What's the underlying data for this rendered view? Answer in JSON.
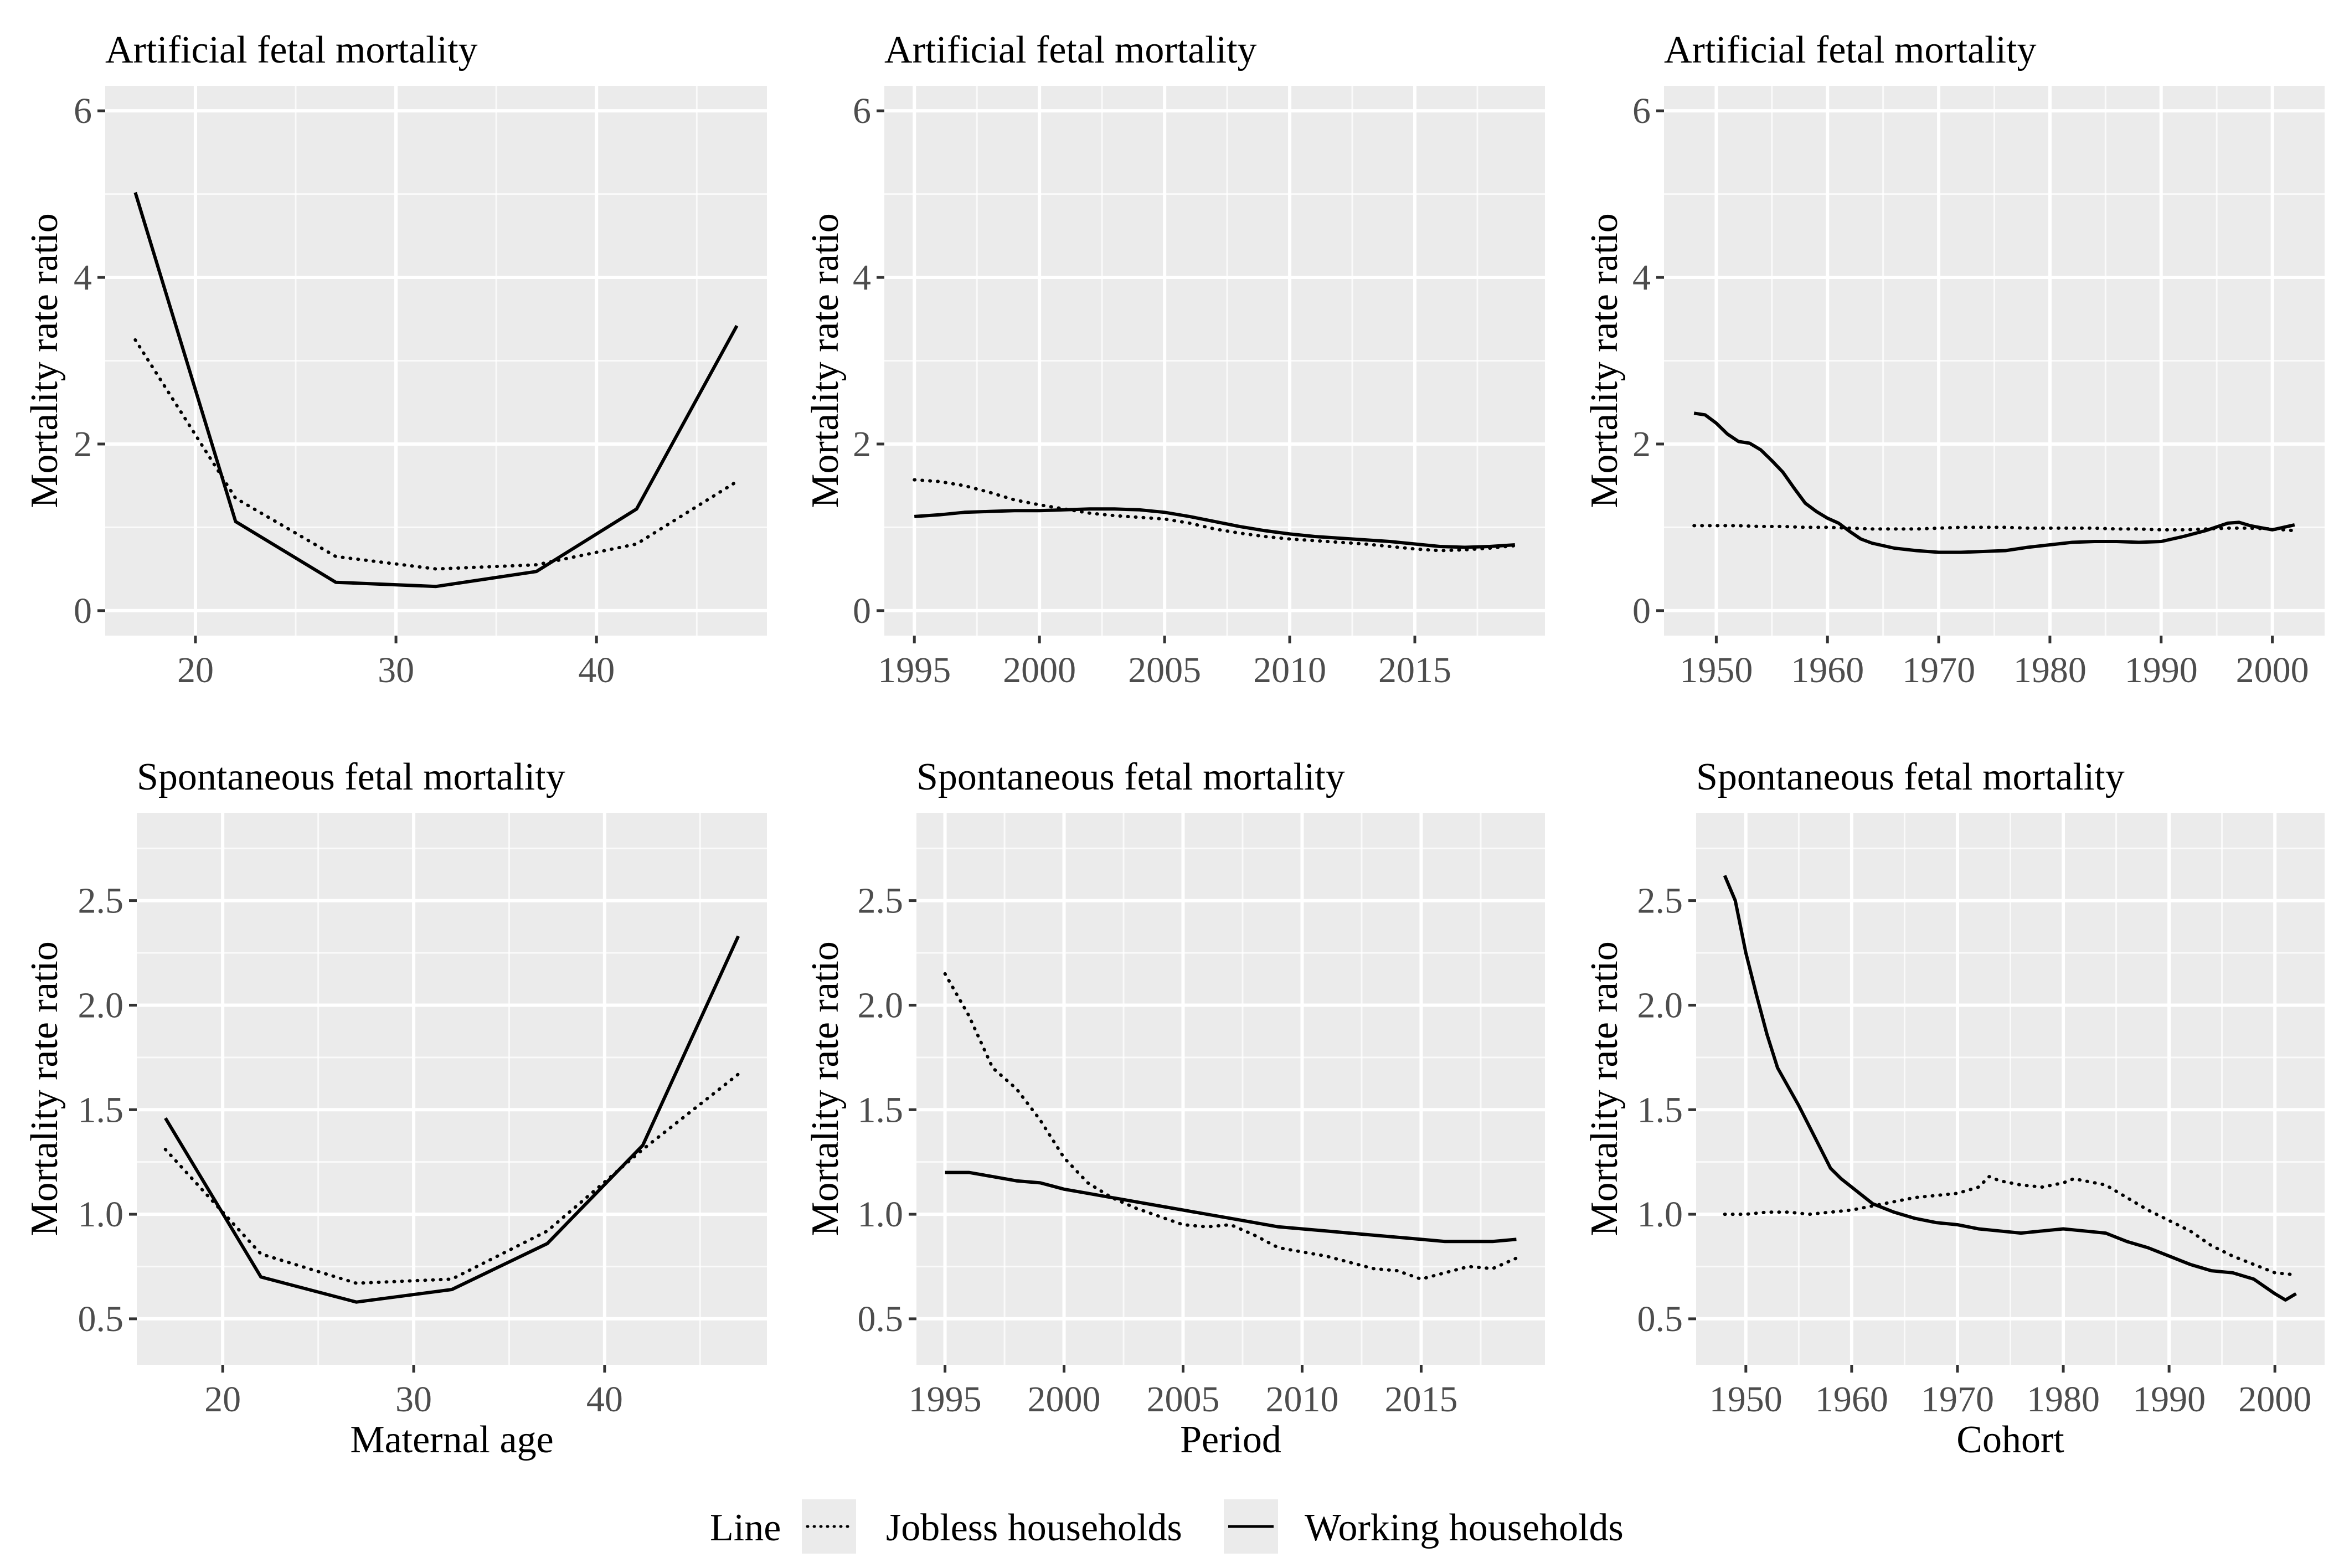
{
  "legend": {
    "title": "Line",
    "items": [
      {
        "label": "Jobless households",
        "style": "dotted"
      },
      {
        "label": "Working households",
        "style": "solid"
      }
    ]
  },
  "colors": {
    "panel_background": "#ebebeb",
    "grid_major": "#ffffff",
    "tick_text": "#4d4d4d",
    "line": "#000000"
  },
  "chart_data": [
    {
      "type": "line",
      "title": "Artificial fetal mortality",
      "xlabel": "",
      "ylabel": "Mortality rate ratio",
      "xlim": [
        15.5,
        48.5
      ],
      "ylim": [
        -0.3,
        6.3
      ],
      "xticks": [
        20,
        30,
        40
      ],
      "xtick_labels": [
        "20",
        "30",
        "40"
      ],
      "yticks": [
        0,
        2,
        4,
        6
      ],
      "ytick_labels": [
        "0",
        "2",
        "4",
        "6"
      ],
      "series": [
        {
          "name": "Jobless households",
          "style": "dotted",
          "x": [
            17,
            22,
            27,
            32,
            37,
            42,
            47
          ],
          "y": [
            3.25,
            1.35,
            0.65,
            0.5,
            0.55,
            0.8,
            1.55
          ]
        },
        {
          "name": "Working households",
          "style": "solid",
          "x": [
            17,
            22,
            27,
            32,
            37,
            42,
            47
          ],
          "y": [
            5.02,
            1.07,
            0.34,
            0.29,
            0.47,
            1.22,
            3.42
          ]
        }
      ]
    },
    {
      "type": "line",
      "title": "Artificial fetal mortality",
      "xlabel": "",
      "ylabel": "Mortality rate ratio",
      "xlim": [
        1993.8,
        2020.2
      ],
      "ylim": [
        -0.3,
        6.3
      ],
      "xticks": [
        1995,
        2000,
        2005,
        2010,
        2015
      ],
      "xtick_labels": [
        "1995",
        "2000",
        "2005",
        "2010",
        "2015"
      ],
      "yticks": [
        0,
        2,
        4,
        6
      ],
      "ytick_labels": [
        "0",
        "2",
        "4",
        "6"
      ],
      "series": [
        {
          "name": "Jobless households",
          "style": "dotted",
          "x": [
            1995,
            1996,
            1997,
            1998,
            1999,
            2000,
            2001,
            2002,
            2003,
            2004,
            2005,
            2006,
            2007,
            2008,
            2009,
            2010,
            2011,
            2012,
            2013,
            2014,
            2015,
            2016,
            2017,
            2018,
            2019
          ],
          "y": [
            1.57,
            1.55,
            1.5,
            1.42,
            1.33,
            1.27,
            1.22,
            1.17,
            1.14,
            1.12,
            1.1,
            1.05,
            0.98,
            0.93,
            0.89,
            0.86,
            0.84,
            0.82,
            0.8,
            0.77,
            0.74,
            0.72,
            0.73,
            0.75,
            0.78
          ]
        },
        {
          "name": "Working households",
          "style": "solid",
          "x": [
            1995,
            1996,
            1997,
            1998,
            1999,
            2000,
            2001,
            2002,
            2003,
            2004,
            2005,
            2006,
            2007,
            2008,
            2009,
            2010,
            2011,
            2012,
            2013,
            2014,
            2015,
            2016,
            2017,
            2018,
            2019
          ],
          "y": [
            1.13,
            1.15,
            1.18,
            1.19,
            1.2,
            1.2,
            1.21,
            1.22,
            1.22,
            1.21,
            1.18,
            1.13,
            1.07,
            1.01,
            0.96,
            0.92,
            0.89,
            0.87,
            0.85,
            0.83,
            0.8,
            0.77,
            0.76,
            0.77,
            0.79
          ]
        }
      ]
    },
    {
      "type": "line",
      "title": "Artificial fetal mortality",
      "xlabel": "",
      "ylabel": "Mortality rate ratio",
      "xlim": [
        1945.3,
        2004.7
      ],
      "ylim": [
        -0.3,
        6.3
      ],
      "xticks": [
        1950,
        1960,
        1970,
        1980,
        1990,
        2000
      ],
      "xtick_labels": [
        "1950",
        "1960",
        "1970",
        "1980",
        "1990",
        "2000"
      ],
      "yticks": [
        0,
        2,
        4,
        6
      ],
      "ytick_labels": [
        "0",
        "2",
        "4",
        "6"
      ],
      "series": [
        {
          "name": "Jobless households",
          "style": "dotted",
          "x": [
            1948,
            1950,
            1952,
            1954,
            1956,
            1958,
            1960,
            1962,
            1964,
            1966,
            1968,
            1970,
            1972,
            1974,
            1976,
            1978,
            1980,
            1982,
            1984,
            1986,
            1988,
            1990,
            1992,
            1994,
            1996,
            1998,
            2000,
            2002
          ],
          "y": [
            1.02,
            1.02,
            1.02,
            1.01,
            1.01,
            1.0,
            1.0,
            0.99,
            0.98,
            0.98,
            0.98,
            0.99,
            1.0,
            1.0,
            1.0,
            0.99,
            0.99,
            0.99,
            0.99,
            0.98,
            0.98,
            0.97,
            0.97,
            0.98,
            0.99,
            0.99,
            0.98,
            0.96
          ]
        },
        {
          "name": "Working households",
          "style": "solid",
          "x": [
            1948,
            1949,
            1950,
            1951,
            1952,
            1953,
            1954,
            1955,
            1956,
            1957,
            1958,
            1959,
            1960,
            1961,
            1962,
            1963,
            1964,
            1966,
            1968,
            1970,
            1972,
            1974,
            1976,
            1978,
            1980,
            1982,
            1984,
            1986,
            1988,
            1990,
            1992,
            1994,
            1996,
            1997,
            1998,
            2000,
            2002
          ],
          "y": [
            2.37,
            2.35,
            2.25,
            2.12,
            2.03,
            2.01,
            1.93,
            1.8,
            1.66,
            1.47,
            1.29,
            1.19,
            1.11,
            1.05,
            0.95,
            0.86,
            0.81,
            0.75,
            0.72,
            0.7,
            0.7,
            0.71,
            0.72,
            0.76,
            0.79,
            0.82,
            0.83,
            0.83,
            0.82,
            0.83,
            0.89,
            0.96,
            1.05,
            1.06,
            1.02,
            0.97,
            1.03
          ]
        }
      ]
    },
    {
      "type": "line",
      "title": "Spontaneous fetal mortality",
      "xlabel": "Maternal age",
      "ylabel": "Mortality rate ratio",
      "xlim": [
        15.5,
        48.5
      ],
      "ylim": [
        0.28,
        2.92
      ],
      "xticks": [
        20,
        30,
        40
      ],
      "xtick_labels": [
        "20",
        "30",
        "40"
      ],
      "yticks": [
        0.5,
        1.0,
        1.5,
        2.0,
        2.5
      ],
      "ytick_labels": [
        "0.5",
        "1.0",
        "1.5",
        "2.0",
        "2.5"
      ],
      "series": [
        {
          "name": "Jobless households",
          "style": "dotted",
          "x": [
            17,
            22,
            27,
            32,
            37,
            42,
            47
          ],
          "y": [
            1.31,
            0.81,
            0.67,
            0.69,
            0.92,
            1.31,
            1.67
          ]
        },
        {
          "name": "Working households",
          "style": "solid",
          "x": [
            17,
            22,
            27,
            32,
            37,
            42,
            47
          ],
          "y": [
            1.46,
            0.7,
            0.58,
            0.64,
            0.86,
            1.33,
            2.33
          ]
        }
      ]
    },
    {
      "type": "line",
      "title": "Spontaneous fetal mortality",
      "xlabel": "Period",
      "ylabel": "Mortality rate ratio",
      "xlim": [
        1993.8,
        2020.2
      ],
      "ylim": [
        0.28,
        2.92
      ],
      "xticks": [
        1995,
        2000,
        2005,
        2010,
        2015
      ],
      "xtick_labels": [
        "1995",
        "2000",
        "2005",
        "2010",
        "2015"
      ],
      "yticks": [
        0.5,
        1.0,
        1.5,
        2.0,
        2.5
      ],
      "ytick_labels": [
        "0.5",
        "1.0",
        "1.5",
        "2.0",
        "2.5"
      ],
      "series": [
        {
          "name": "Jobless households",
          "style": "dotted",
          "x": [
            1995,
            1996,
            1997,
            1998,
            1999,
            2000,
            2001,
            2002,
            2003,
            2004,
            2005,
            2006,
            2007,
            2008,
            2009,
            2010,
            2011,
            2012,
            2013,
            2014,
            2015,
            2016,
            2017,
            2018,
            2019
          ],
          "y": [
            2.15,
            1.95,
            1.7,
            1.6,
            1.45,
            1.27,
            1.15,
            1.08,
            1.03,
            0.99,
            0.95,
            0.94,
            0.95,
            0.9,
            0.84,
            0.82,
            0.8,
            0.77,
            0.74,
            0.73,
            0.69,
            0.72,
            0.75,
            0.74,
            0.79
          ]
        },
        {
          "name": "Working households",
          "style": "solid",
          "x": [
            1995,
            1996,
            1997,
            1998,
            1999,
            2000,
            2001,
            2002,
            2003,
            2004,
            2005,
            2006,
            2007,
            2008,
            2009,
            2010,
            2011,
            2012,
            2013,
            2014,
            2015,
            2016,
            2017,
            2018,
            2019
          ],
          "y": [
            1.2,
            1.2,
            1.18,
            1.16,
            1.15,
            1.12,
            1.1,
            1.08,
            1.06,
            1.04,
            1.02,
            1.0,
            0.98,
            0.96,
            0.94,
            0.93,
            0.92,
            0.91,
            0.9,
            0.89,
            0.88,
            0.87,
            0.87,
            0.87,
            0.88
          ]
        }
      ]
    },
    {
      "type": "line",
      "title": "Spontaneous fetal mortality",
      "xlabel": "Cohort",
      "ylabel": "Mortality rate ratio",
      "xlim": [
        1945.3,
        2004.7
      ],
      "ylim": [
        0.28,
        2.92
      ],
      "xticks": [
        1950,
        1960,
        1970,
        1980,
        1990,
        2000
      ],
      "xtick_labels": [
        "1950",
        "1960",
        "1970",
        "1980",
        "1990",
        "2000"
      ],
      "yticks": [
        0.5,
        1.0,
        1.5,
        2.0,
        2.5
      ],
      "ytick_labels": [
        "0.5",
        "1.0",
        "1.5",
        "2.0",
        "2.5"
      ],
      "series": [
        {
          "name": "Jobless households",
          "style": "dotted",
          "x": [
            1948,
            1950,
            1952,
            1954,
            1956,
            1958,
            1960,
            1962,
            1964,
            1966,
            1968,
            1970,
            1972,
            1973,
            1974,
            1976,
            1978,
            1980,
            1981,
            1982,
            1984,
            1986,
            1988,
            1990,
            1992,
            1994,
            1996,
            1998,
            2000,
            2002
          ],
          "y": [
            1.0,
            1.0,
            1.01,
            1.01,
            1.0,
            1.01,
            1.02,
            1.04,
            1.06,
            1.08,
            1.09,
            1.1,
            1.13,
            1.18,
            1.16,
            1.14,
            1.13,
            1.15,
            1.17,
            1.16,
            1.14,
            1.08,
            1.02,
            0.97,
            0.92,
            0.85,
            0.8,
            0.76,
            0.72,
            0.71
          ]
        },
        {
          "name": "Working households",
          "style": "solid",
          "x": [
            1948,
            1949,
            1950,
            1951,
            1952,
            1953,
            1954,
            1955,
            1956,
            1957,
            1958,
            1959,
            1960,
            1961,
            1962,
            1964,
            1966,
            1968,
            1970,
            1972,
            1974,
            1976,
            1978,
            1980,
            1982,
            1984,
            1986,
            1988,
            1990,
            1992,
            1994,
            1996,
            1998,
            2000,
            2001,
            2002
          ],
          "y": [
            2.62,
            2.5,
            2.25,
            2.05,
            1.86,
            1.7,
            1.61,
            1.52,
            1.42,
            1.32,
            1.22,
            1.17,
            1.13,
            1.09,
            1.05,
            1.01,
            0.98,
            0.96,
            0.95,
            0.93,
            0.92,
            0.91,
            0.92,
            0.93,
            0.92,
            0.91,
            0.87,
            0.84,
            0.8,
            0.76,
            0.73,
            0.72,
            0.69,
            0.62,
            0.59,
            0.62
          ]
        }
      ]
    }
  ]
}
